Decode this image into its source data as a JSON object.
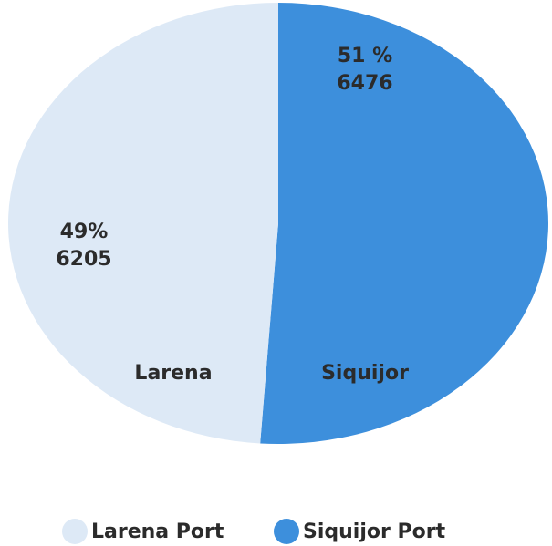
{
  "chart_data": {
    "type": "pie",
    "categories": [
      "Larena",
      "Siquijor"
    ],
    "values": [
      6205,
      6476
    ],
    "percents": [
      {
        "value": 49,
        "label": "49%"
      },
      {
        "value": 51,
        "label": "51 %"
      }
    ],
    "colors": [
      "#dde9f6",
      "#3d8fdc"
    ],
    "legend": [
      "Larena Port",
      "Siquijor Port"
    ]
  }
}
